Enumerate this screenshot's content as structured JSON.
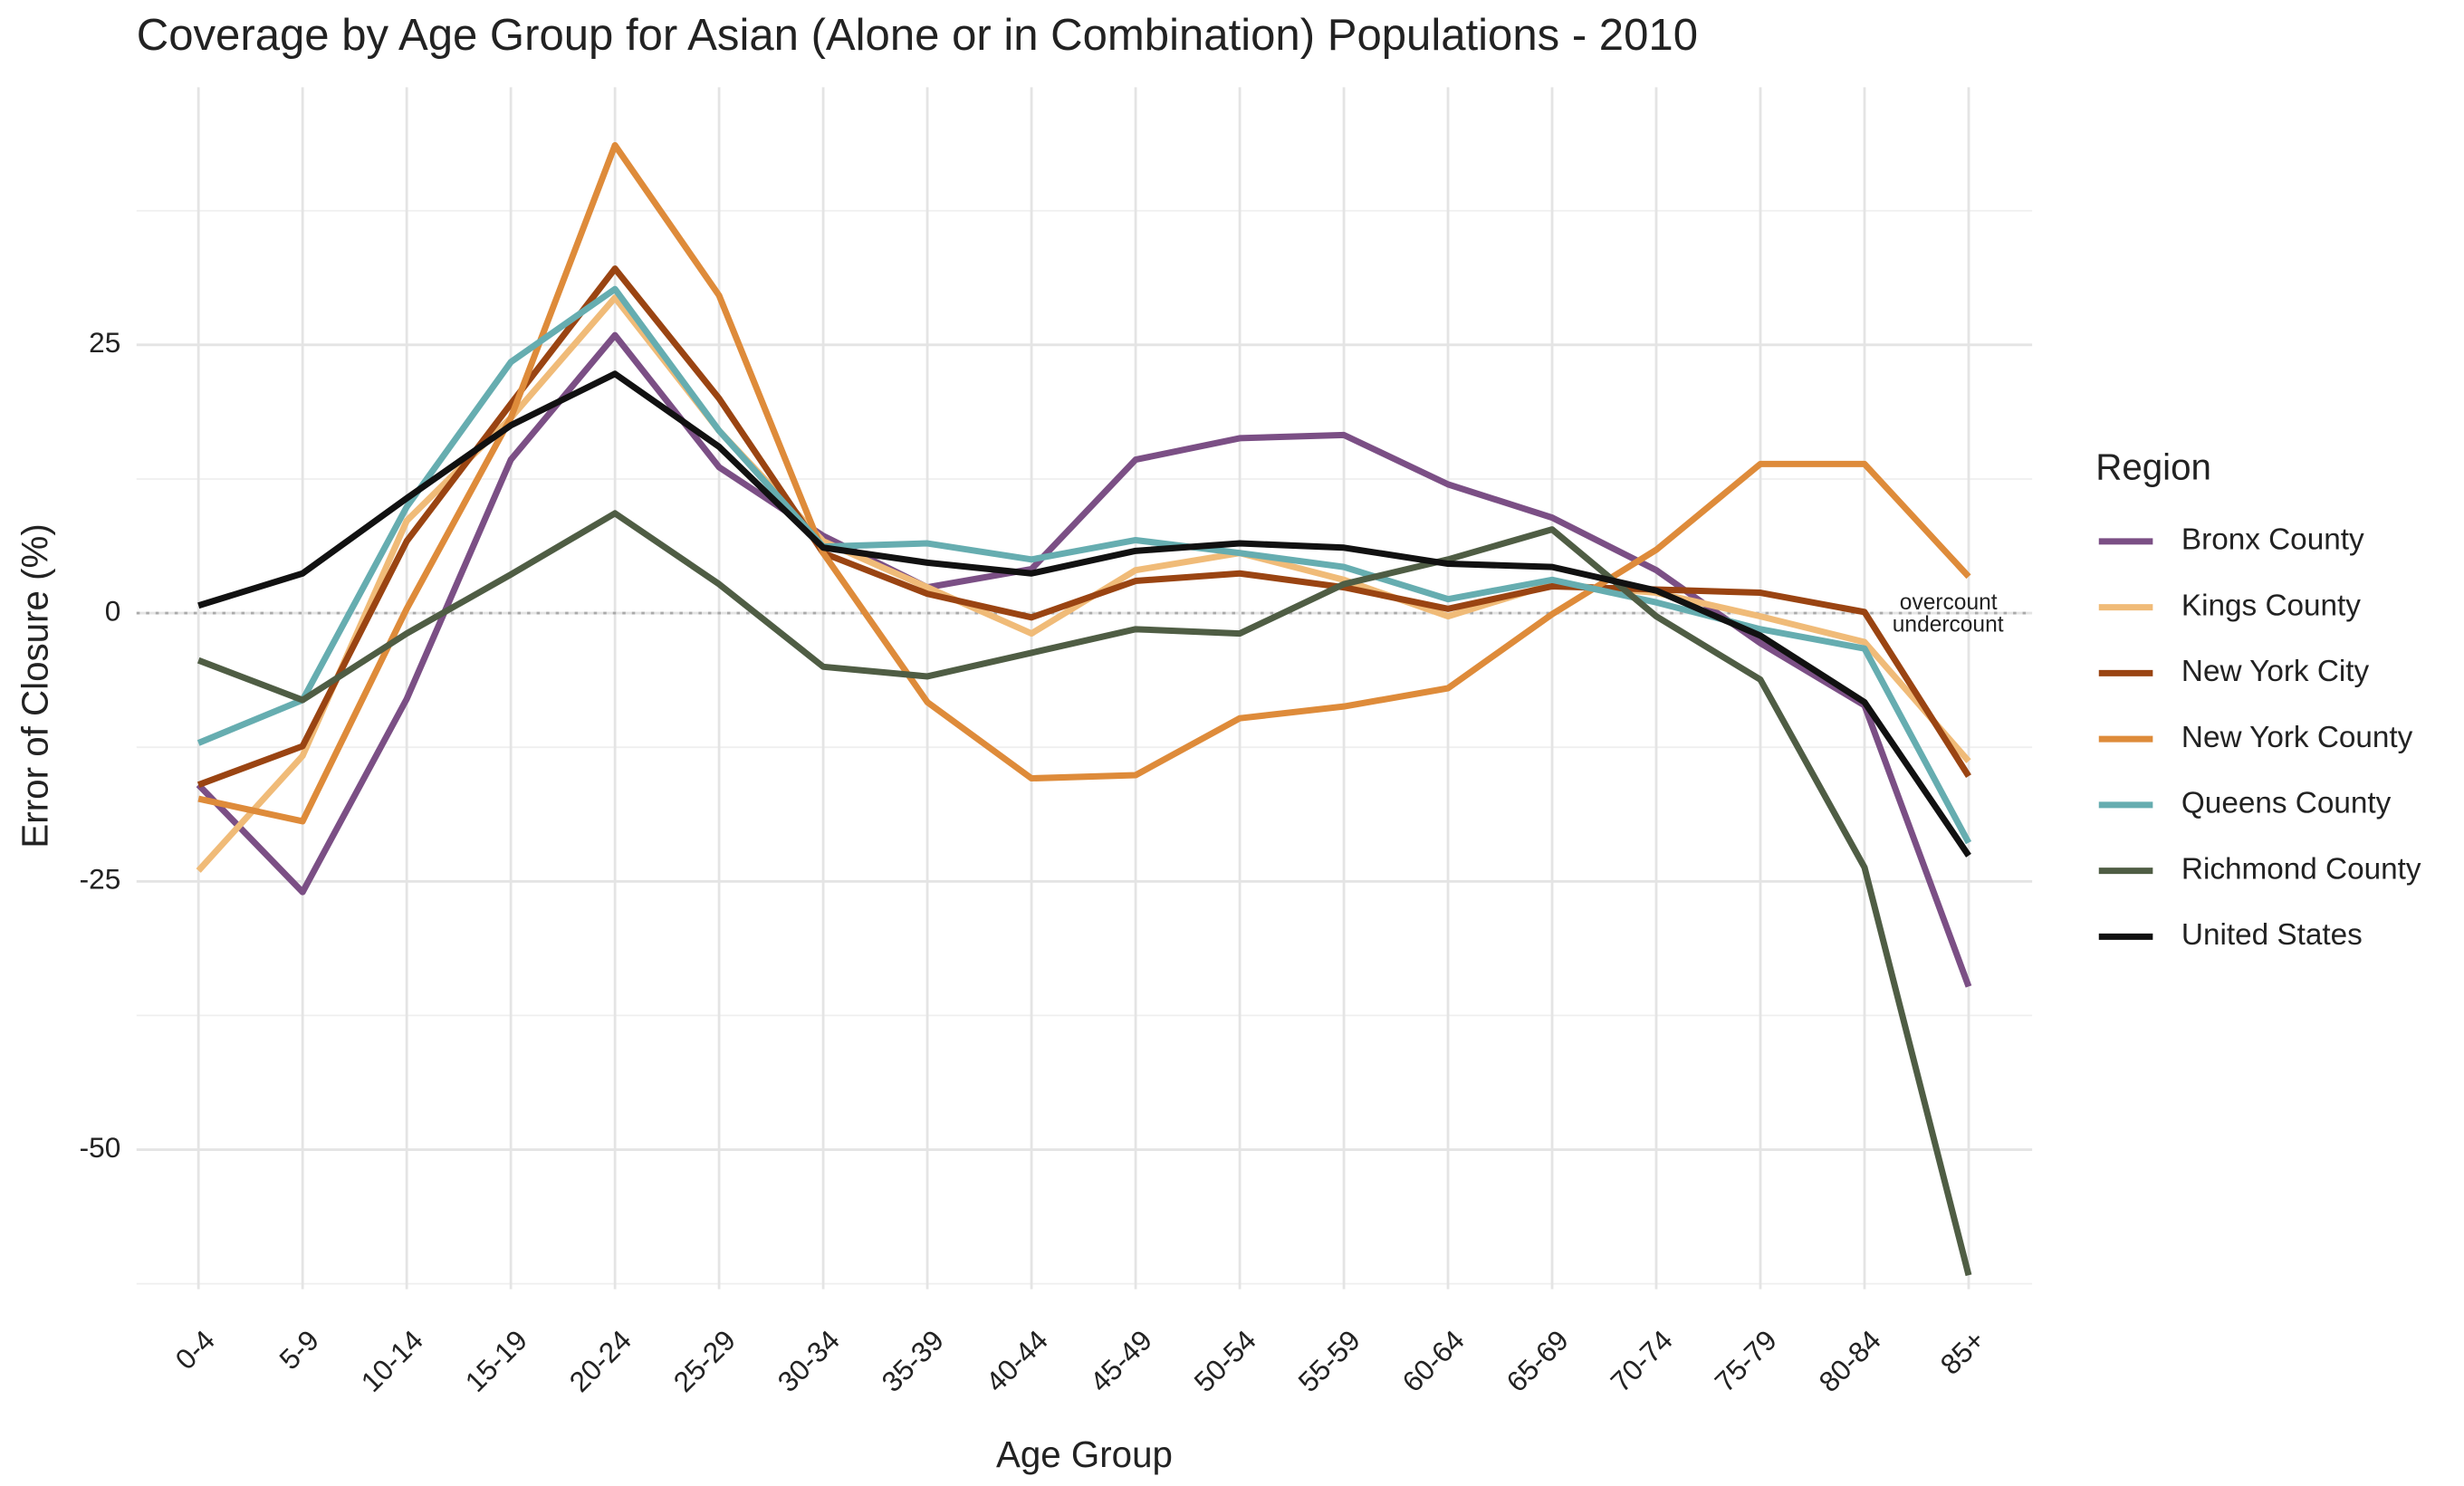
{
  "chart_data": {
    "type": "line",
    "title": "Coverage by Age Group for Asian (Alone or in Combination) Populations - 2010",
    "x_label": "Age Group",
    "y_label": "Error of Closure (%)",
    "legend_title": "Region",
    "legend_position": "right",
    "grid": true,
    "zero_annotations": {
      "above": "overcount",
      "below": "undercount"
    },
    "categories": [
      "0-4",
      "5-9",
      "10-14",
      "15-19",
      "20-24",
      "25-29",
      "30-34",
      "35-39",
      "40-44",
      "45-49",
      "50-54",
      "55-59",
      "60-64",
      "65-69",
      "70-74",
      "75-79",
      "80-84",
      "85+"
    ],
    "ylim": [
      -63,
      49
    ],
    "yticks": [
      25,
      0,
      -25,
      -50
    ],
    "series": [
      {
        "name": "Bronx County",
        "color": "#7b4f85",
        "values": [
          -16,
          -26,
          -8,
          14.3,
          25.9,
          13.6,
          7.2,
          2.4,
          4.1,
          14.3,
          16.3,
          16.6,
          12,
          8.9,
          4,
          -2.8,
          -8.6,
          -34.8
        ]
      },
      {
        "name": "Kings County",
        "color": "#f0bb78",
        "values": [
          -24,
          -13.3,
          8.6,
          18.2,
          29.4,
          17,
          6.7,
          2.4,
          -1.9,
          4,
          5.6,
          3.1,
          -0.3,
          2.7,
          1.9,
          -0.3,
          -2.7,
          -13.8
        ]
      },
      {
        "name": "New York City",
        "color": "#9a4412",
        "values": [
          -16,
          -12.4,
          6.7,
          19.5,
          32.1,
          20,
          5.6,
          1.8,
          -0.4,
          3,
          3.7,
          2.4,
          0.4,
          2.5,
          2.2,
          1.9,
          0.1,
          -15.2
        ]
      },
      {
        "name": "New York County",
        "color": "#de8b3a",
        "values": [
          -17.3,
          -19.4,
          0.4,
          18.2,
          43.6,
          29.6,
          5.6,
          -8.3,
          -15.4,
          -15.1,
          -9.8,
          -8.7,
          -7,
          -0.1,
          5.9,
          13.9,
          13.9,
          3.4
        ]
      },
      {
        "name": "Queens County",
        "color": "#66adb0",
        "values": [
          -12.1,
          -8.1,
          9.9,
          23.4,
          30.2,
          17,
          6.2,
          6.5,
          5,
          6.8,
          5.6,
          4.3,
          1.3,
          3.1,
          1,
          -1.5,
          -3.3,
          -21.4
        ]
      },
      {
        "name": "Richmond County",
        "color": "#4f5d44",
        "values": [
          -4.4,
          -8.1,
          -1.9,
          3.6,
          9.3,
          2.7,
          -5,
          -5.9,
          -3.7,
          -1.5,
          -1.9,
          2.7,
          5,
          7.8,
          -0.3,
          -6.2,
          -23.7,
          -61.7
        ]
      },
      {
        "name": "United States",
        "color": "#111111",
        "values": [
          0.7,
          3.7,
          10.7,
          17.5,
          22.3,
          15.5,
          6.1,
          4.7,
          3.7,
          5.8,
          6.5,
          6.1,
          4.6,
          4.3,
          2.1,
          -2.1,
          -8.3,
          -22.6
        ]
      }
    ]
  }
}
